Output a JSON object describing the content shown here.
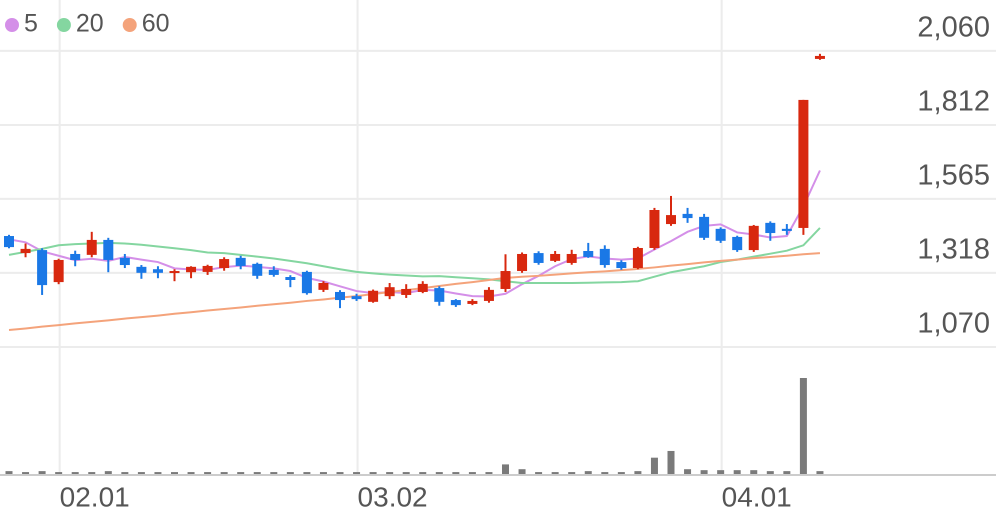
{
  "chart_data": {
    "type": "candlestick",
    "categories": [
      null,
      null,
      null,
      "02.01",
      null,
      null,
      null,
      null,
      null,
      null,
      null,
      null,
      null,
      null,
      null,
      null,
      null,
      null,
      null,
      null,
      null,
      "03.02",
      null,
      null,
      null,
      null,
      null,
      null,
      null,
      null,
      null,
      null,
      null,
      null,
      null,
      null,
      null,
      null,
      null,
      null,
      null,
      null,
      null,
      "04.01",
      null,
      null,
      null,
      null,
      null,
      null
    ],
    "open": [
      1441,
      1384,
      1394,
      1287,
      1381,
      1378,
      1428,
      1368,
      1338,
      1330,
      1318,
      1320,
      1321,
      1334,
      1368,
      1348,
      1328,
      1304,
      1321,
      1261,
      1254,
      1240,
      1221,
      1240,
      1244,
      1254,
      1267,
      1227,
      1214,
      1224,
      1264,
      1324,
      1384,
      1358,
      1351,
      1391,
      1398,
      1354,
      1334,
      1401,
      1481,
      1515,
      1505,
      1465,
      1438,
      1394,
      1485,
      1465,
      1468,
      2033
    ],
    "high": [
      1445,
      1416,
      1400,
      1365,
      1392,
      1455,
      1435,
      1381,
      1344,
      1340,
      1330,
      1340,
      1345,
      1370,
      1375,
      1352,
      1340,
      1310,
      1325,
      1290,
      1260,
      1248,
      1262,
      1284,
      1280,
      1290,
      1273,
      1230,
      1230,
      1270,
      1380,
      1386,
      1390,
      1391,
      1395,
      1418,
      1410,
      1360,
      1405,
      1535,
      1575,
      1535,
      1515,
      1470,
      1442,
      1478,
      1490,
      1481,
      1896,
      2050
    ],
    "low": [
      1400,
      1370,
      1244,
      1280,
      1340,
      1370,
      1320,
      1334,
      1298,
      1300,
      1290,
      1300,
      1311,
      1325,
      1330,
      1298,
      1305,
      1270,
      1245,
      1254,
      1200,
      1224,
      1218,
      1230,
      1234,
      1250,
      1208,
      1204,
      1210,
      1218,
      1254,
      1318,
      1345,
      1354,
      1345,
      1368,
      1335,
      1328,
      1330,
      1395,
      1475,
      1485,
      1428,
      1418,
      1388,
      1388,
      1425,
      1445,
      1445,
      2030
    ],
    "close": [
      1404,
      1398,
      1277,
      1361,
      1361,
      1428,
      1361,
      1344,
      1318,
      1318,
      1324,
      1338,
      1341,
      1364,
      1341,
      1308,
      1311,
      1294,
      1250,
      1284,
      1227,
      1230,
      1258,
      1270,
      1264,
      1281,
      1221,
      1210,
      1224,
      1261,
      1324,
      1381,
      1351,
      1381,
      1381,
      1371,
      1344,
      1334,
      1401,
      1528,
      1511,
      1501,
      1435,
      1425,
      1394,
      1475,
      1451,
      1458,
      1896,
      2043
    ],
    "up_color": "#d8280f",
    "down_color": "#1a78e6",
    "volume": [
      3,
      2,
      3,
      2,
      2,
      2,
      3,
      2,
      2,
      2,
      2,
      2,
      2,
      2,
      2,
      2,
      2,
      2,
      2,
      2,
      2,
      2,
      2,
      2,
      2,
      2,
      2,
      2,
      2,
      2,
      10,
      5,
      2,
      2,
      2,
      3,
      2,
      2,
      3,
      17,
      24,
      5,
      4,
      4,
      4,
      4,
      3,
      3,
      100,
      3
    ],
    "volume_color": "#7a7a7a",
    "series": [
      {
        "name": "5",
        "color": "#d48fe8",
        "values": [
          1430,
          1420,
          1390,
          1375,
          1360,
          1365,
          1358,
          1371,
          1362,
          1354,
          1333,
          1329,
          1328,
          1337,
          1342,
          1338,
          1333,
          1324,
          1301,
          1289,
          1273,
          1257,
          1250,
          1254,
          1250,
          1261,
          1259,
          1249,
          1240,
          1239,
          1248,
          1280,
          1308,
          1340,
          1364,
          1373,
          1366,
          1362,
          1366,
          1396,
          1424,
          1455,
          1475,
          1480,
          1453,
          1446,
          1436,
          1441,
          1540,
          1660
        ]
      },
      {
        "name": "20",
        "color": "#84d6a0",
        "values": [
          1378,
          1388,
          1398,
          1410,
          1414,
          1416,
          1418,
          1416,
          1412,
          1406,
          1400,
          1394,
          1386,
          1384,
          1378,
          1372,
          1366,
          1358,
          1350,
          1340,
          1330,
          1321,
          1316,
          1312,
          1309,
          1306,
          1307,
          1303,
          1300,
          1296,
          1290,
          1284,
          1284,
          1284,
          1284,
          1285,
          1286,
          1287,
          1290,
          1305,
          1320,
          1330,
          1340,
          1354,
          1362,
          1372,
          1382,
          1392,
          1410,
          1468
        ]
      },
      {
        "name": "60",
        "color": "#f4a37b",
        "values": [
          1127,
          1132,
          1138,
          1143,
          1149,
          1154,
          1159,
          1165,
          1170,
          1175,
          1181,
          1186,
          1192,
          1197,
          1202,
          1208,
          1213,
          1218,
          1224,
          1229,
          1235,
          1240,
          1247,
          1254,
          1260,
          1267,
          1274,
          1281,
          1287,
          1294,
          1301,
          1305,
          1308,
          1312,
          1316,
          1320,
          1323,
          1327,
          1331,
          1336,
          1342,
          1347,
          1353,
          1358,
          1362,
          1367,
          1371,
          1375,
          1380,
          1384
        ]
      }
    ],
    "ylim": [
      1060,
      2230
    ],
    "yticks": [
      {
        "value": 2060,
        "label": "2,060"
      },
      {
        "value": 1812,
        "label": "1,812"
      },
      {
        "value": 1565,
        "label": "1,565"
      },
      {
        "value": 1318,
        "label": "1,318"
      },
      {
        "value": 1070,
        "label": "1,070"
      }
    ],
    "grid": true
  }
}
